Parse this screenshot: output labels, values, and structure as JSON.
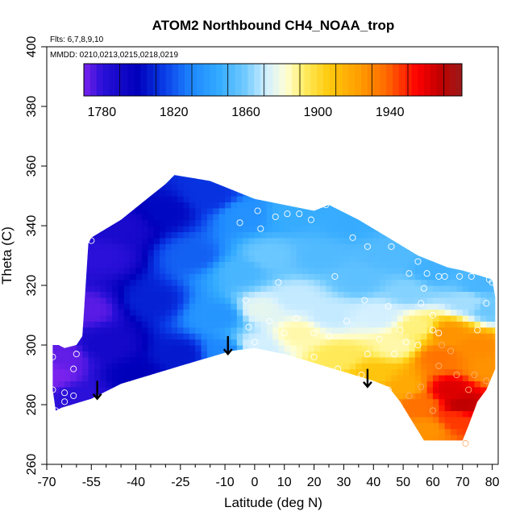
{
  "chart_data": {
    "type": "heatmap",
    "title": "ATOM2 Northbound CH4_NOAA_trop",
    "flights_note": "Flts: 6,7,8,9,10",
    "dates_note": "MMDD: 0210,0213,0215,0218,0219",
    "xlabel": "Latitude (deg N)",
    "ylabel": "Theta (C)",
    "xlim": [
      -70,
      82
    ],
    "ylim": [
      260,
      400
    ],
    "x_ticks": [
      -70,
      -55,
      -40,
      -25,
      -10,
      0,
      10,
      20,
      30,
      40,
      50,
      60,
      70,
      80
    ],
    "x_minor_ticks": [
      -65,
      -60,
      -50,
      -45,
      -35,
      -30,
      -20,
      -15,
      -5,
      5,
      15,
      25,
      35,
      45,
      55,
      65,
      75
    ],
    "y_ticks": [
      260,
      280,
      300,
      320,
      340,
      360,
      380,
      400
    ],
    "colorbar": {
      "min": 1770,
      "max": 1980,
      "step": 20,
      "tick_values": [
        1780,
        1820,
        1860,
        1900,
        1940
      ],
      "tick_labels": [
        "1780",
        "1820",
        "1860",
        "1900",
        "1940"
      ],
      "stops": [
        {
          "value": 1770,
          "color": "#7a22ee"
        },
        {
          "value": 1780,
          "color": "#2a10d8"
        },
        {
          "value": 1800,
          "color": "#0000bb"
        },
        {
          "value": 1815,
          "color": "#0a3ee8"
        },
        {
          "value": 1830,
          "color": "#1e88ff"
        },
        {
          "value": 1845,
          "color": "#33aaff"
        },
        {
          "value": 1860,
          "color": "#74ccff"
        },
        {
          "value": 1872,
          "color": "#d4f0ff"
        },
        {
          "value": 1882,
          "color": "#ffffd8"
        },
        {
          "value": 1892,
          "color": "#ffee66"
        },
        {
          "value": 1905,
          "color": "#ffcc11"
        },
        {
          "value": 1922,
          "color": "#ffa000"
        },
        {
          "value": 1938,
          "color": "#ff6a00"
        },
        {
          "value": 1955,
          "color": "#ff0000"
        },
        {
          "value": 1968,
          "color": "#c00000"
        },
        {
          "value": 1980,
          "color": "#9a1a1a"
        }
      ]
    },
    "domain": {
      "top": [
        [
          -56,
          334
        ],
        [
          -55,
          336
        ],
        [
          -45,
          342
        ],
        [
          -35,
          350
        ],
        [
          -30,
          354
        ],
        [
          -27,
          357
        ],
        [
          -15,
          355
        ],
        [
          0,
          349
        ],
        [
          10,
          347
        ],
        [
          20,
          345
        ],
        [
          25,
          347
        ],
        [
          35,
          342
        ],
        [
          45,
          336
        ],
        [
          55,
          330
        ],
        [
          65,
          326
        ],
        [
          70,
          325
        ],
        [
          80,
          322
        ],
        [
          81,
          316
        ]
      ],
      "bottom": [
        [
          81,
          292
        ],
        [
          78,
          285
        ],
        [
          75,
          281
        ],
        [
          72,
          273
        ],
        [
          70,
          268
        ],
        [
          57,
          268
        ],
        [
          49,
          281
        ],
        [
          45,
          286
        ],
        [
          40,
          288
        ],
        [
          30,
          291
        ],
        [
          10,
          297
        ],
        [
          0,
          299
        ],
        [
          -8,
          298
        ],
        [
          -25,
          293
        ],
        [
          -45,
          287
        ],
        [
          -55,
          282
        ],
        [
          -65,
          279
        ],
        [
          -67,
          278
        ],
        [
          -68,
          285
        ],
        [
          -68,
          300
        ],
        [
          -66,
          300
        ],
        [
          -64,
          299
        ],
        [
          -60,
          300
        ],
        [
          -58,
          303
        ]
      ]
    },
    "field_nodes": [
      {
        "lat": -68,
        "theta": 290,
        "ch4": 1770
      },
      {
        "lat": -64,
        "theta": 296,
        "ch4": 1773
      },
      {
        "lat": -60,
        "theta": 283,
        "ch4": 1780
      },
      {
        "lat": -56,
        "theta": 312,
        "ch4": 1774
      },
      {
        "lat": -52,
        "theta": 330,
        "ch4": 1780
      },
      {
        "lat": -50,
        "theta": 300,
        "ch4": 1790
      },
      {
        "lat": -45,
        "theta": 340,
        "ch4": 1788
      },
      {
        "lat": -40,
        "theta": 290,
        "ch4": 1800
      },
      {
        "lat": -35,
        "theta": 315,
        "ch4": 1808
      },
      {
        "lat": -30,
        "theta": 345,
        "ch4": 1802
      },
      {
        "lat": -25,
        "theta": 297,
        "ch4": 1806
      },
      {
        "lat": -20,
        "theta": 330,
        "ch4": 1822
      },
      {
        "lat": -15,
        "theta": 350,
        "ch4": 1812
      },
      {
        "lat": -12,
        "theta": 310,
        "ch4": 1836
      },
      {
        "lat": -10,
        "theta": 298,
        "ch4": 1830
      },
      {
        "lat": -5,
        "theta": 325,
        "ch4": 1850
      },
      {
        "lat": -3,
        "theta": 344,
        "ch4": 1834
      },
      {
        "lat": 0,
        "theta": 300,
        "ch4": 1872
      },
      {
        "lat": 2,
        "theta": 312,
        "ch4": 1876
      },
      {
        "lat": 5,
        "theta": 330,
        "ch4": 1858
      },
      {
        "lat": 12,
        "theta": 344,
        "ch4": 1846
      },
      {
        "lat": 14,
        "theta": 316,
        "ch4": 1870
      },
      {
        "lat": 15,
        "theta": 304,
        "ch4": 1886
      },
      {
        "lat": 22,
        "theta": 330,
        "ch4": 1852
      },
      {
        "lat": 25,
        "theta": 310,
        "ch4": 1870
      },
      {
        "lat": 28,
        "theta": 296,
        "ch4": 1894
      },
      {
        "lat": 32,
        "theta": 341,
        "ch4": 1846
      },
      {
        "lat": 35,
        "theta": 322,
        "ch4": 1855
      },
      {
        "lat": 40,
        "theta": 290,
        "ch4": 1908
      },
      {
        "lat": 42,
        "theta": 310,
        "ch4": 1872
      },
      {
        "lat": 45,
        "theta": 330,
        "ch4": 1852
      },
      {
        "lat": 48,
        "theta": 300,
        "ch4": 1886
      },
      {
        "lat": 50,
        "theta": 286,
        "ch4": 1918
      },
      {
        "lat": 52,
        "theta": 318,
        "ch4": 1862
      },
      {
        "lat": 55,
        "theta": 306,
        "ch4": 1890
      },
      {
        "lat": 56,
        "theta": 280,
        "ch4": 1936
      },
      {
        "lat": 58,
        "theta": 272,
        "ch4": 1926
      },
      {
        "lat": 60,
        "theta": 325,
        "ch4": 1848
      },
      {
        "lat": 62,
        "theta": 296,
        "ch4": 1935
      },
      {
        "lat": 65,
        "theta": 304,
        "ch4": 1926
      },
      {
        "lat": 66,
        "theta": 285,
        "ch4": 1962
      },
      {
        "lat": 68,
        "theta": 275,
        "ch4": 1946
      },
      {
        "lat": 70,
        "theta": 280,
        "ch4": 1968
      },
      {
        "lat": 72,
        "theta": 315,
        "ch4": 1866
      },
      {
        "lat": 75,
        "theta": 300,
        "ch4": 1928
      },
      {
        "lat": 75,
        "theta": 320,
        "ch4": 1850
      },
      {
        "lat": 80,
        "theta": 312,
        "ch4": 1858
      },
      {
        "lat": 79,
        "theta": 292,
        "ch4": 1926
      }
    ],
    "observations": [
      {
        "lat": -68,
        "theta": 296,
        "ch4": 1772
      },
      {
        "lat": -68,
        "theta": 285,
        "ch4": 1772
      },
      {
        "lat": -64,
        "theta": 284,
        "ch4": 1775
      },
      {
        "lat": -61,
        "theta": 292,
        "ch4": 1776
      },
      {
        "lat": -60,
        "theta": 297,
        "ch4": 1777
      },
      {
        "lat": -64,
        "theta": 281,
        "ch4": 1776
      },
      {
        "lat": -61,
        "theta": 283,
        "ch4": 1779
      },
      {
        "lat": -67,
        "theta": 278,
        "ch4": 1772
      },
      {
        "lat": -55,
        "theta": 335,
        "ch4": 1775
      },
      {
        "lat": -5,
        "theta": 341,
        "ch4": 1833
      },
      {
        "lat": 1,
        "theta": 345,
        "ch4": 1838
      },
      {
        "lat": 7,
        "theta": 343,
        "ch4": 1840
      },
      {
        "lat": 11,
        "theta": 344,
        "ch4": 1842
      },
      {
        "lat": 15,
        "theta": 344,
        "ch4": 1842
      },
      {
        "lat": 19,
        "theta": 342,
        "ch4": 1845
      },
      {
        "lat": 24,
        "theta": 347,
        "ch4": 1840
      },
      {
        "lat": 33,
        "theta": 336,
        "ch4": 1848
      },
      {
        "lat": 38,
        "theta": 333,
        "ch4": 1850
      },
      {
        "lat": 46,
        "theta": 333,
        "ch4": 1850
      },
      {
        "lat": 55,
        "theta": 328,
        "ch4": 1852
      },
      {
        "lat": 52,
        "theta": 324,
        "ch4": 1853
      },
      {
        "lat": 58,
        "theta": 324,
        "ch4": 1854
      },
      {
        "lat": 64,
        "theta": 323,
        "ch4": 1855
      },
      {
        "lat": 69,
        "theta": 323,
        "ch4": 1855
      },
      {
        "lat": 73,
        "theta": 323,
        "ch4": 1856
      },
      {
        "lat": 79,
        "theta": 322,
        "ch4": 1856
      },
      {
        "lat": 80,
        "theta": 321,
        "ch4": 1857
      },
      {
        "lat": 62,
        "theta": 323,
        "ch4": 1855
      },
      {
        "lat": 57,
        "theta": 319,
        "ch4": 1858
      },
      {
        "lat": 56,
        "theta": 314,
        "ch4": 1860
      },
      {
        "lat": 60,
        "theta": 310,
        "ch4": 1862
      },
      {
        "lat": 78,
        "theta": 314,
        "ch4": 1860
      },
      {
        "lat": 75,
        "theta": 305,
        "ch4": 1866
      },
      {
        "lat": 2,
        "theta": 339,
        "ch4": 1840
      },
      {
        "lat": 8,
        "theta": 321,
        "ch4": 1860
      },
      {
        "lat": 27,
        "theta": 323,
        "ch4": 1858
      },
      {
        "lat": 31,
        "theta": 308,
        "ch4": 1870
      },
      {
        "lat": 37,
        "theta": 315,
        "ch4": 1862
      },
      {
        "lat": 45,
        "theta": 313,
        "ch4": 1862
      },
      {
        "lat": 42,
        "theta": 302,
        "ch4": 1880
      },
      {
        "lat": 49,
        "theta": 305,
        "ch4": 1872
      },
      {
        "lat": 51,
        "theta": 301,
        "ch4": 1886
      },
      {
        "lat": 47,
        "theta": 297,
        "ch4": 1895
      },
      {
        "lat": 55,
        "theta": 300,
        "ch4": 1900
      },
      {
        "lat": 60,
        "theta": 305,
        "ch4": 1910
      },
      {
        "lat": 62,
        "theta": 304,
        "ch4": 1920
      },
      {
        "lat": 63,
        "theta": 300,
        "ch4": 1930
      },
      {
        "lat": 62,
        "theta": 293,
        "ch4": 1936
      },
      {
        "lat": 68,
        "theta": 290,
        "ch4": 1950
      },
      {
        "lat": 66,
        "theta": 298,
        "ch4": 1940
      },
      {
        "lat": 72,
        "theta": 285,
        "ch4": 1966
      },
      {
        "lat": 74,
        "theta": 290,
        "ch4": 1950
      },
      {
        "lat": 78,
        "theta": 288,
        "ch4": 1940
      },
      {
        "lat": 56,
        "theta": 286,
        "ch4": 1930
      },
      {
        "lat": 60,
        "theta": 278,
        "ch4": 1940
      },
      {
        "lat": 52,
        "theta": 283,
        "ch4": 1926
      },
      {
        "lat": 45,
        "theta": 285,
        "ch4": 1912
      },
      {
        "lat": 36,
        "theta": 290,
        "ch4": 1906
      },
      {
        "lat": 28,
        "theta": 292,
        "ch4": 1896
      },
      {
        "lat": 20,
        "theta": 296,
        "ch4": 1890
      },
      {
        "lat": 10,
        "theta": 304,
        "ch4": 1878
      },
      {
        "lat": 5,
        "theta": 308,
        "ch4": 1876
      },
      {
        "lat": 0,
        "theta": 301,
        "ch4": 1872
      },
      {
        "lat": -2,
        "theta": 306,
        "ch4": 1866
      },
      {
        "lat": -3,
        "theta": 315,
        "ch4": 1858
      },
      {
        "lat": 14,
        "theta": 309,
        "ch4": 1874
      },
      {
        "lat": 20,
        "theta": 304,
        "ch4": 1880
      },
      {
        "lat": 25,
        "theta": 303,
        "ch4": 1882
      },
      {
        "lat": 38,
        "theta": 297,
        "ch4": 1894
      },
      {
        "lat": 71,
        "theta": 267,
        "ch4": 1930
      }
    ],
    "arrows": [
      {
        "lat": -53,
        "theta_from": 288,
        "theta_to": 282
      },
      {
        "lat": -9,
        "theta_from": 303,
        "theta_to": 297
      },
      {
        "lat": 38,
        "theta_from": 292,
        "theta_to": 286
      }
    ]
  }
}
